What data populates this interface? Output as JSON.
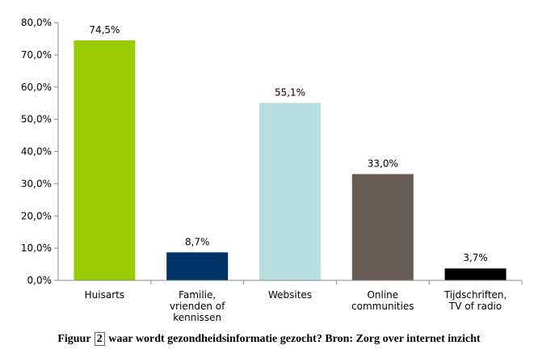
{
  "chart_data": {
    "type": "bar",
    "categories": [
      [
        "Huisarts"
      ],
      [
        "Familie,",
        "vrienden of",
        "kennissen"
      ],
      [
        "Websites"
      ],
      [
        "Online",
        "communities"
      ],
      [
        "Tijdschriften,",
        "TV of radio"
      ]
    ],
    "values": [
      74.5,
      8.7,
      55.1,
      33.0,
      3.7
    ],
    "value_labels": [
      "74,5%",
      "8,7%",
      "55,1%",
      "33,0%",
      "3,7%"
    ],
    "colors": [
      "#99CC00",
      "#003366",
      "#B7DEE0",
      "#675B55",
      "#000000"
    ],
    "ylim": [
      0,
      80
    ],
    "yticks": [
      "0,0%",
      "10,0%",
      "20,0%",
      "30,0%",
      "40,0%",
      "50,0%",
      "60,0%",
      "70,0%",
      "80,0%"
    ],
    "grid": false,
    "legend": "none"
  },
  "caption": {
    "prefix": "Figuur",
    "number": "2",
    "text": "waar wordt gezondheidsinformatie gezocht?  Bron: Zorg over internet inzicht"
  }
}
